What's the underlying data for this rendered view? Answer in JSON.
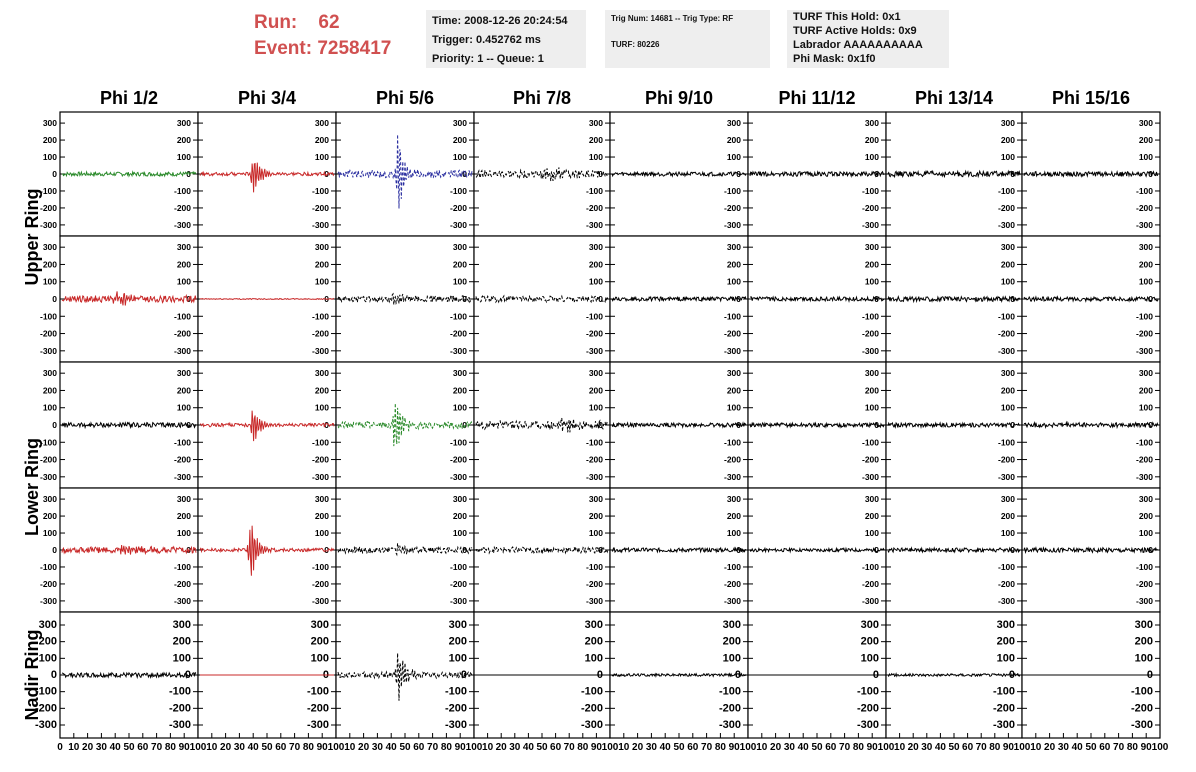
{
  "header": {
    "run_label": "Run:",
    "run_value": "62",
    "event_label": "Event:",
    "event_value": "7258417"
  },
  "info_time": {
    "time": "Time: 2008-12-26 20:24:54",
    "trigger": "Trigger: 0.452762 ms",
    "priority": "Priority: 1 -- Queue: 1"
  },
  "info_trig": {
    "trig": "Trig Num: 14681 -- Trig Type: RF",
    "turf": "TURF: 80226"
  },
  "info_turf": {
    "hold": "TURF This Hold: 0x1",
    "active": "TURF Active Holds: 0x9",
    "labrador": "Labrador AAAAAAAAAA",
    "phimask": "Phi Mask: 0x1f0"
  },
  "colors": {
    "black": "#000000",
    "red": "#c82828",
    "green": "#2a8a2a",
    "blue": "#2b2fa0"
  },
  "chart_data": {
    "type": "line",
    "columns": [
      "Phi 1/2",
      "Phi 3/4",
      "Phi 5/6",
      "Phi 7/8",
      "Phi 9/10",
      "Phi 11/12",
      "Phi 13/14",
      "Phi 15/16"
    ],
    "ring_labels": [
      "Upper Ring",
      "Lower Ring",
      "Nadir Ring"
    ],
    "ylim": [
      -330,
      330
    ],
    "xlim": [
      0,
      100
    ],
    "y_ticks_small": [
      "300",
      "200",
      "100",
      "0",
      "-100",
      "-200",
      "-300"
    ],
    "y_ticks_big": [
      "300",
      "200",
      "100",
      "0",
      "-100",
      "-200",
      "-300"
    ],
    "x_tick_labels_first": [
      "0",
      "10",
      "20",
      "30",
      "40",
      "50",
      "60",
      "70",
      "80",
      "90",
      "100"
    ],
    "x_tick_labels": [
      "10",
      "20",
      "30",
      "40",
      "50",
      "60",
      "70",
      "80",
      "90",
      "100"
    ],
    "rows": [
      [
        {
          "color": "green",
          "style": "solid",
          "noise": 12,
          "burst": 0,
          "center": 50,
          "width": 0
        },
        {
          "color": "red",
          "style": "solid",
          "noise": 10,
          "burst": 170,
          "center": 40,
          "width": 10
        },
        {
          "color": "blue",
          "style": "dashed",
          "noise": 22,
          "burst": 320,
          "center": 45,
          "width": 9
        },
        {
          "color": "black",
          "style": "dashed",
          "noise": 22,
          "burst": 40,
          "center": 55,
          "width": 25
        },
        {
          "color": "black",
          "style": "solid",
          "noise": 12,
          "burst": 0,
          "center": 50,
          "width": 0
        },
        {
          "color": "black",
          "style": "solid",
          "noise": 14,
          "burst": 0,
          "center": 50,
          "width": 0
        },
        {
          "color": "black",
          "style": "solid",
          "noise": 16,
          "burst": 0,
          "center": 50,
          "width": 0
        },
        {
          "color": "black",
          "style": "solid",
          "noise": 14,
          "burst": 0,
          "center": 50,
          "width": 0
        }
      ],
      [
        {
          "color": "red",
          "style": "solid",
          "noise": 20,
          "burst": 45,
          "center": 42,
          "width": 20
        },
        {
          "color": "red",
          "style": "solid",
          "noise": 3,
          "burst": 0,
          "center": 50,
          "width": 0
        },
        {
          "color": "black",
          "style": "dashed",
          "noise": 18,
          "burst": 35,
          "center": 42,
          "width": 15
        },
        {
          "color": "black",
          "style": "dashed",
          "noise": 18,
          "burst": 0,
          "center": 50,
          "width": 0
        },
        {
          "color": "black",
          "style": "solid",
          "noise": 12,
          "burst": 0,
          "center": 50,
          "width": 0
        },
        {
          "color": "black",
          "style": "solid",
          "noise": 12,
          "burst": 0,
          "center": 50,
          "width": 0
        },
        {
          "color": "black",
          "style": "solid",
          "noise": 14,
          "burst": 0,
          "center": 50,
          "width": 0
        },
        {
          "color": "black",
          "style": "solid",
          "noise": 12,
          "burst": 0,
          "center": 50,
          "width": 0
        }
      ],
      [
        {
          "color": "black",
          "style": "solid",
          "noise": 14,
          "burst": 0,
          "center": 50,
          "width": 0
        },
        {
          "color": "red",
          "style": "solid",
          "noise": 10,
          "burst": 150,
          "center": 40,
          "width": 10
        },
        {
          "color": "green",
          "style": "dashed",
          "noise": 20,
          "burst": 240,
          "center": 43,
          "width": 9
        },
        {
          "color": "black",
          "style": "dashed",
          "noise": 24,
          "burst": 40,
          "center": 65,
          "width": 25
        },
        {
          "color": "black",
          "style": "solid",
          "noise": 12,
          "burst": 0,
          "center": 50,
          "width": 0
        },
        {
          "color": "black",
          "style": "solid",
          "noise": 12,
          "burst": 0,
          "center": 50,
          "width": 0
        },
        {
          "color": "black",
          "style": "solid",
          "noise": 12,
          "burst": 0,
          "center": 50,
          "width": 0
        },
        {
          "color": "black",
          "style": "solid",
          "noise": 14,
          "burst": 0,
          "center": 50,
          "width": 0
        }
      ],
      [
        {
          "color": "red",
          "style": "solid",
          "noise": 18,
          "burst": 30,
          "center": 45,
          "width": 25
        },
        {
          "color": "red",
          "style": "solid",
          "noise": 10,
          "burst": 230,
          "center": 38,
          "width": 10
        },
        {
          "color": "black",
          "style": "dashed",
          "noise": 18,
          "burst": 30,
          "center": 45,
          "width": 15
        },
        {
          "color": "black",
          "style": "dashed",
          "noise": 18,
          "burst": 0,
          "center": 50,
          "width": 0
        },
        {
          "color": "black",
          "style": "solid",
          "noise": 12,
          "burst": 0,
          "center": 50,
          "width": 0
        },
        {
          "color": "black",
          "style": "solid",
          "noise": 10,
          "burst": 0,
          "center": 50,
          "width": 0
        },
        {
          "color": "black",
          "style": "solid",
          "noise": 12,
          "burst": 0,
          "center": 50,
          "width": 0
        },
        {
          "color": "black",
          "style": "solid",
          "noise": 14,
          "burst": 0,
          "center": 50,
          "width": 0
        }
      ],
      [
        {
          "color": "black",
          "style": "solid",
          "noise": 14,
          "burst": 0,
          "center": 50,
          "width": 0
        },
        {
          "color": "red",
          "style": "solid",
          "noise": 0,
          "burst": 0,
          "center": 50,
          "width": 0
        },
        {
          "color": "black",
          "style": "dashed",
          "noise": 18,
          "burst": 190,
          "center": 45,
          "width": 10
        },
        {
          "color": "black",
          "style": "solid",
          "noise": 0,
          "burst": 0,
          "center": 50,
          "width": 0
        },
        {
          "color": "black",
          "style": "solid",
          "noise": 8,
          "burst": 0,
          "center": 50,
          "width": 0
        },
        {
          "color": "black",
          "style": "solid",
          "noise": 0,
          "burst": 0,
          "center": 50,
          "width": 0
        },
        {
          "color": "black",
          "style": "solid",
          "noise": 8,
          "burst": 0,
          "center": 50,
          "width": 0
        },
        {
          "color": "black",
          "style": "solid",
          "noise": 0,
          "burst": 0,
          "center": 50,
          "width": 0
        }
      ]
    ]
  }
}
